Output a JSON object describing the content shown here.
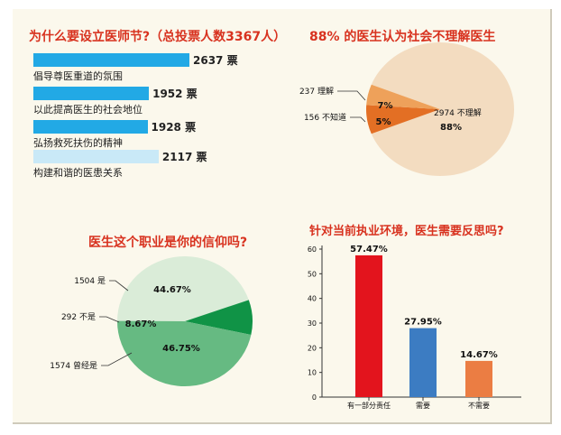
{
  "chart_data": [
    {
      "type": "bar",
      "title": "为什么要设立医师节?（总投票人数3367人）",
      "orientation": "horizontal",
      "categories": [
        "倡导尊医重道的氛围",
        "以此提高医生的社会地位",
        "弘扬救死扶伤的精神",
        "构建和谐的医患关系"
      ],
      "values": [
        2637,
        1952,
        1928,
        2117
      ],
      "value_labels": [
        "2637 票",
        "1952 票",
        "1928 票",
        "2117 票"
      ],
      "colors": [
        "#22a9e5",
        "#22a9e5",
        "#22a9e5",
        "#c9e9f7"
      ]
    },
    {
      "type": "pie",
      "title": "88% 的医生认为社会不理解医生",
      "slices": [
        {
          "count_label": "237 理解",
          "percent": 7,
          "percent_label": "7%",
          "color": "#e36f24"
        },
        {
          "count_label": "156 不知道",
          "percent": 5,
          "percent_label": "5%",
          "color": "#eea15a"
        },
        {
          "count_label": "2974 不理解",
          "percent": 88,
          "percent_label": "88%",
          "color": "#f3dcc0"
        }
      ]
    },
    {
      "type": "pie",
      "title": "医生这个职业是你的信仰吗?",
      "slices": [
        {
          "count_label": "1504 是",
          "percent": 44.67,
          "percent_label": "44.67%",
          "color": "#daecd8"
        },
        {
          "count_label": "292 不是",
          "percent": 8.67,
          "percent_label": "8.67%",
          "color": "#109346"
        },
        {
          "count_label": "1574 曾经是",
          "percent": 46.75,
          "percent_label": "46.75%",
          "color": "#66ba82"
        }
      ]
    },
    {
      "type": "bar",
      "title": "针对当前执业环境，医生需要反思吗?",
      "categories": [
        "有一部分责任",
        "需要",
        "不需要"
      ],
      "values": [
        57.47,
        27.95,
        14.67
      ],
      "value_labels": [
        "57.47%",
        "27.95%",
        "14.67%"
      ],
      "colors": [
        "#e3141d",
        "#3c7cc2",
        "#eb7d43"
      ],
      "ylim": [
        0,
        60
      ],
      "yticks": [
        "0",
        "10",
        "20",
        "30",
        "40",
        "50",
        "60"
      ]
    }
  ]
}
